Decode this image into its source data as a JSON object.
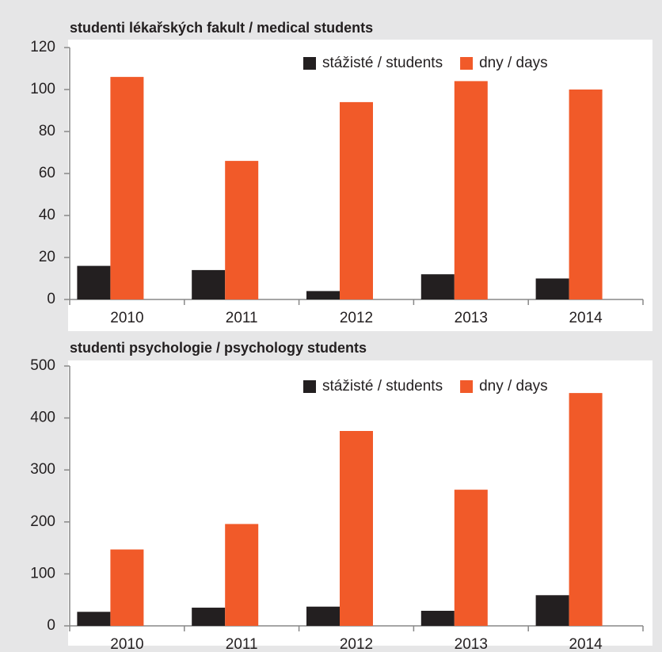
{
  "chart_data": [
    {
      "type": "bar",
      "title": "studenti lékařských fakult / medical students",
      "categories": [
        "2010",
        "2011",
        "2012",
        "2013",
        "2014"
      ],
      "series": [
        {
          "name": "stážisté / students",
          "color": "#231f20",
          "values": [
            16,
            14,
            4,
            12,
            10
          ]
        },
        {
          "name": "dny / days",
          "color": "#f15a29",
          "values": [
            106,
            66,
            94,
            104,
            100
          ]
        }
      ],
      "ylim": [
        0,
        120
      ],
      "yticks": [
        0,
        20,
        40,
        60,
        80,
        100,
        120
      ],
      "legend": "top-right"
    },
    {
      "type": "bar",
      "title": "studenti psychologie / psychology students",
      "categories": [
        "2010",
        "2011",
        "2012",
        "2013",
        "2014"
      ],
      "series": [
        {
          "name": "stážisté / students",
          "color": "#231f20",
          "values": [
            27,
            35,
            37,
            29,
            59
          ]
        },
        {
          "name": "dny / days",
          "color": "#f15a29",
          "values": [
            147,
            196,
            375,
            262,
            448
          ]
        }
      ],
      "ylim": [
        0,
        500
      ],
      "yticks": [
        0,
        100,
        200,
        300,
        400,
        500
      ],
      "legend": "top-right"
    }
  ]
}
